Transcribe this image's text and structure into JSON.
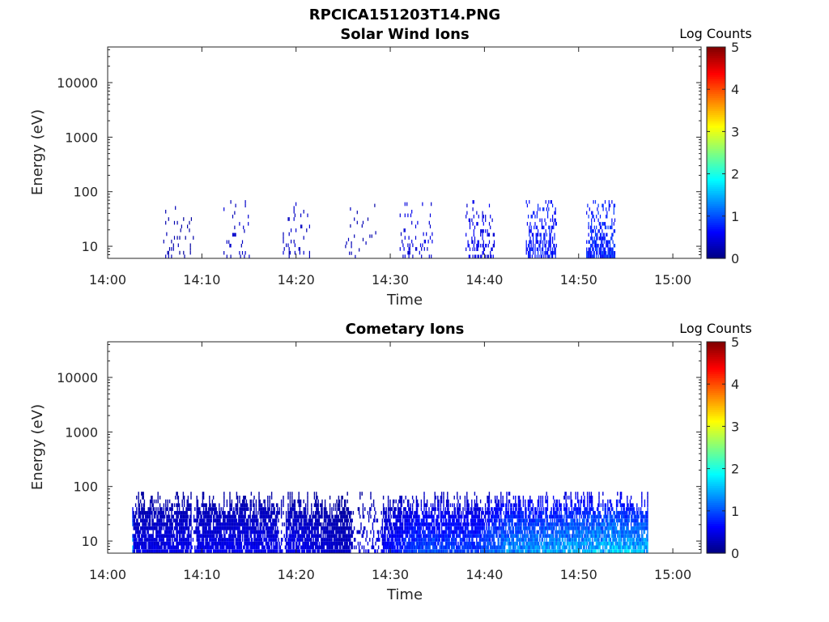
{
  "figure_title": "RPCICA151203T14.PNG",
  "colorbar": {
    "label": "Log Counts",
    "ticks": [
      "0",
      "1",
      "2",
      "3",
      "4",
      "5"
    ],
    "range": [
      0,
      5
    ],
    "colormap": "jet"
  },
  "chart_data": [
    {
      "type": "heatmap",
      "title": "Solar Wind Ions",
      "xlabel": "Time",
      "ylabel": "Energy (eV)",
      "x_ticks": [
        "14:00",
        "14:10",
        "14:20",
        "14:30",
        "14:40",
        "14:50",
        "15:00"
      ],
      "x_tick_values_min": [
        0,
        10,
        20,
        30,
        40,
        50,
        60
      ],
      "xlim_min": [
        0,
        63
      ],
      "y_ticks": [
        "10",
        "100",
        "1000",
        "10000"
      ],
      "y_tick_values": [
        10,
        100,
        1000,
        10000
      ],
      "ylim": [
        6,
        45000
      ],
      "y_scale": "log",
      "bursts": [
        {
          "start_min": 5.8,
          "end_min": 7.6,
          "emax_ev": 75,
          "level": 0.3,
          "density": 0.12
        },
        {
          "start_min": 7.6,
          "end_min": 9.2,
          "emax_ev": 75,
          "level": 0.2,
          "density": 0.06
        },
        {
          "start_min": 12.3,
          "end_min": 15.0,
          "emax_ev": 70,
          "level": 0.4,
          "density": 0.1
        },
        {
          "start_min": 18.6,
          "end_min": 21.4,
          "emax_ev": 75,
          "level": 0.4,
          "density": 0.1
        },
        {
          "start_min": 25.0,
          "end_min": 28.5,
          "emax_ev": 60,
          "level": 0.3,
          "density": 0.06
        },
        {
          "start_min": 31.0,
          "end_min": 34.5,
          "emax_ev": 75,
          "level": 0.5,
          "density": 0.14
        },
        {
          "start_min": 38.0,
          "end_min": 41.0,
          "emax_ev": 70,
          "level": 0.6,
          "density": 0.28
        },
        {
          "start_min": 44.4,
          "end_min": 47.6,
          "emax_ev": 70,
          "level": 0.8,
          "density": 0.45
        },
        {
          "start_min": 50.8,
          "end_min": 53.8,
          "emax_ev": 70,
          "level": 0.9,
          "density": 0.55
        }
      ]
    },
    {
      "type": "heatmap",
      "title": "Cometary Ions",
      "xlabel": "Time",
      "ylabel": "Energy (eV)",
      "x_ticks": [
        "14:00",
        "14:10",
        "14:20",
        "14:30",
        "14:40",
        "14:50",
        "15:00"
      ],
      "x_tick_values_min": [
        0,
        10,
        20,
        30,
        40,
        50,
        60
      ],
      "xlim_min": [
        0,
        63
      ],
      "y_ticks": [
        "10",
        "100",
        "1000",
        "10000"
      ],
      "y_tick_values": [
        10,
        100,
        1000,
        10000
      ],
      "ylim": [
        6,
        45000
      ],
      "y_scale": "log",
      "data_start_min": 2.6,
      "data_end_min": 57.3,
      "data_emax_ev": 80,
      "intensity_profile": [
        {
          "t_min": 2.6,
          "level": 0.5
        },
        {
          "t_min": 10.0,
          "level": 0.55
        },
        {
          "t_min": 20.0,
          "level": 0.55
        },
        {
          "t_min": 25.0,
          "level": 0.35
        },
        {
          "t_min": 29.0,
          "level": 0.6
        },
        {
          "t_min": 33.0,
          "level": 1.0
        },
        {
          "t_min": 39.0,
          "level": 0.9
        },
        {
          "t_min": 42.0,
          "level": 1.3
        },
        {
          "t_min": 48.0,
          "level": 1.45
        },
        {
          "t_min": 54.0,
          "level": 1.6
        },
        {
          "t_min": 57.3,
          "level": 1.5
        }
      ],
      "gaps": [
        {
          "start_min": 8.8,
          "end_min": 9.4
        },
        {
          "start_min": 18.0,
          "end_min": 18.8
        },
        {
          "start_min": 25.9,
          "end_min": 29.1
        }
      ]
    }
  ]
}
